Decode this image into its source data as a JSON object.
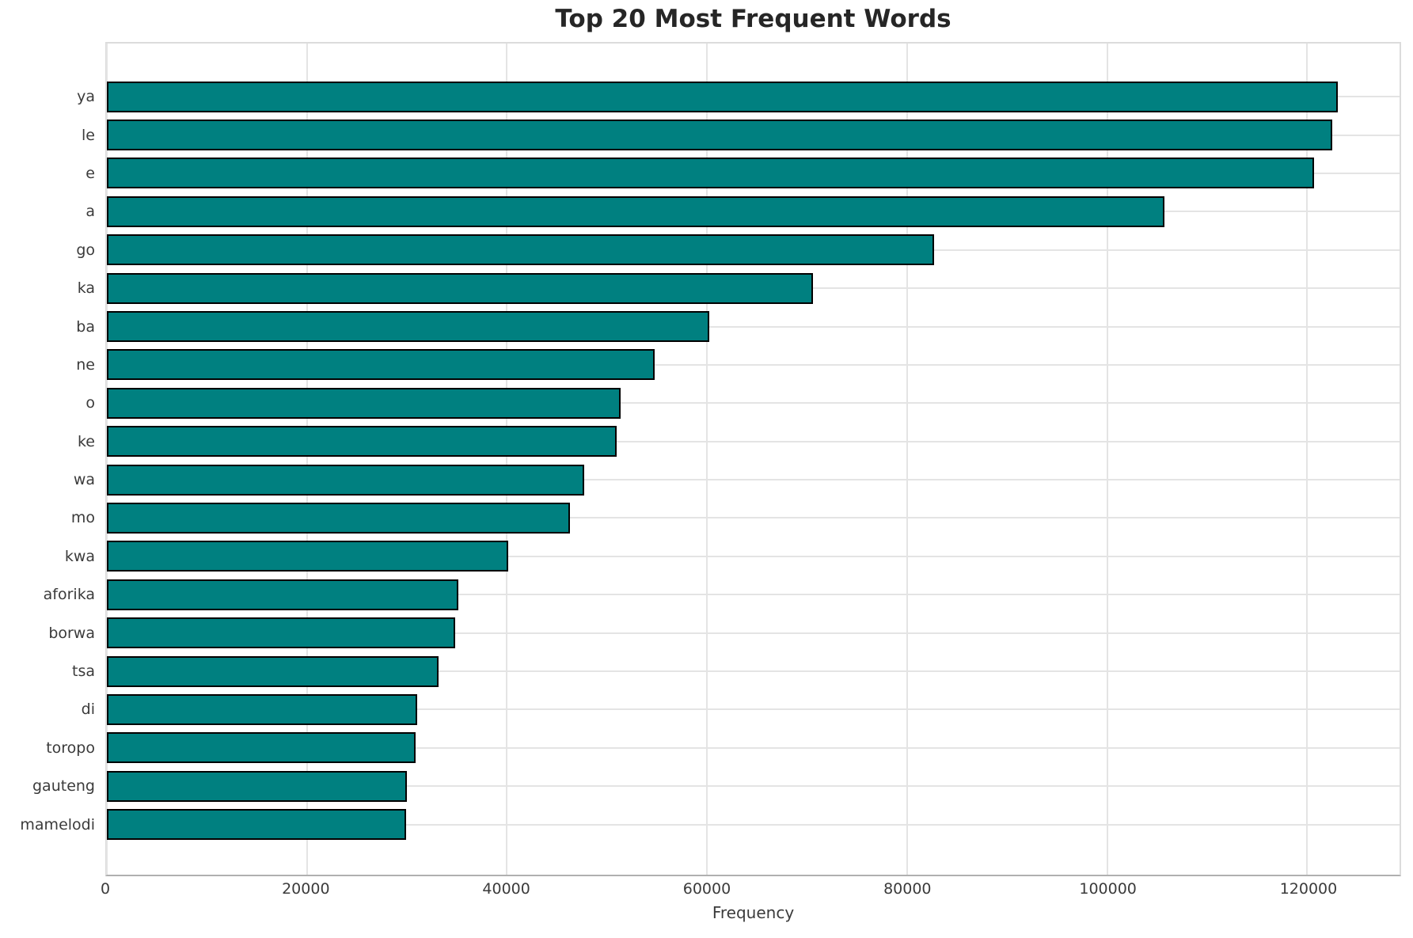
{
  "title": "Top 20 Most Frequent Words",
  "colors": {
    "bar_fill": "#008080",
    "bar_edge": "#000000",
    "grid": "#e4e4e4",
    "spine": "#dcdcdc",
    "spine_bottom": "#b0b0b0",
    "title_text": "#262626",
    "tick_text": "#3b3b3b"
  },
  "chart_data": {
    "type": "bar",
    "orientation": "horizontal",
    "title": "Top 20 Most Frequent Words",
    "xlabel": "Frequency",
    "ylabel": "",
    "categories": [
      "ya",
      "le",
      "e",
      "a",
      "go",
      "ka",
      "ba",
      "ne",
      "o",
      "ke",
      "wa",
      "mo",
      "kwa",
      "aforika",
      "borwa",
      "tsa",
      "di",
      "toropo",
      "gauteng",
      "mamelodi"
    ],
    "values": [
      123100,
      122500,
      120700,
      105700,
      82700,
      70600,
      60200,
      54800,
      51400,
      51000,
      47700,
      46300,
      40100,
      35100,
      34800,
      33200,
      31000,
      30900,
      30000,
      29900
    ],
    "xticks": [
      0,
      20000,
      40000,
      60000,
      80000,
      100000,
      120000
    ],
    "xtick_labels": [
      "0",
      "20000",
      "40000",
      "60000",
      "80000",
      "100000",
      "120000"
    ],
    "xlim": [
      0,
      129240
    ],
    "grid": true,
    "legend": false,
    "bar_color": "#008080",
    "bar_edge_color": "#000000"
  }
}
